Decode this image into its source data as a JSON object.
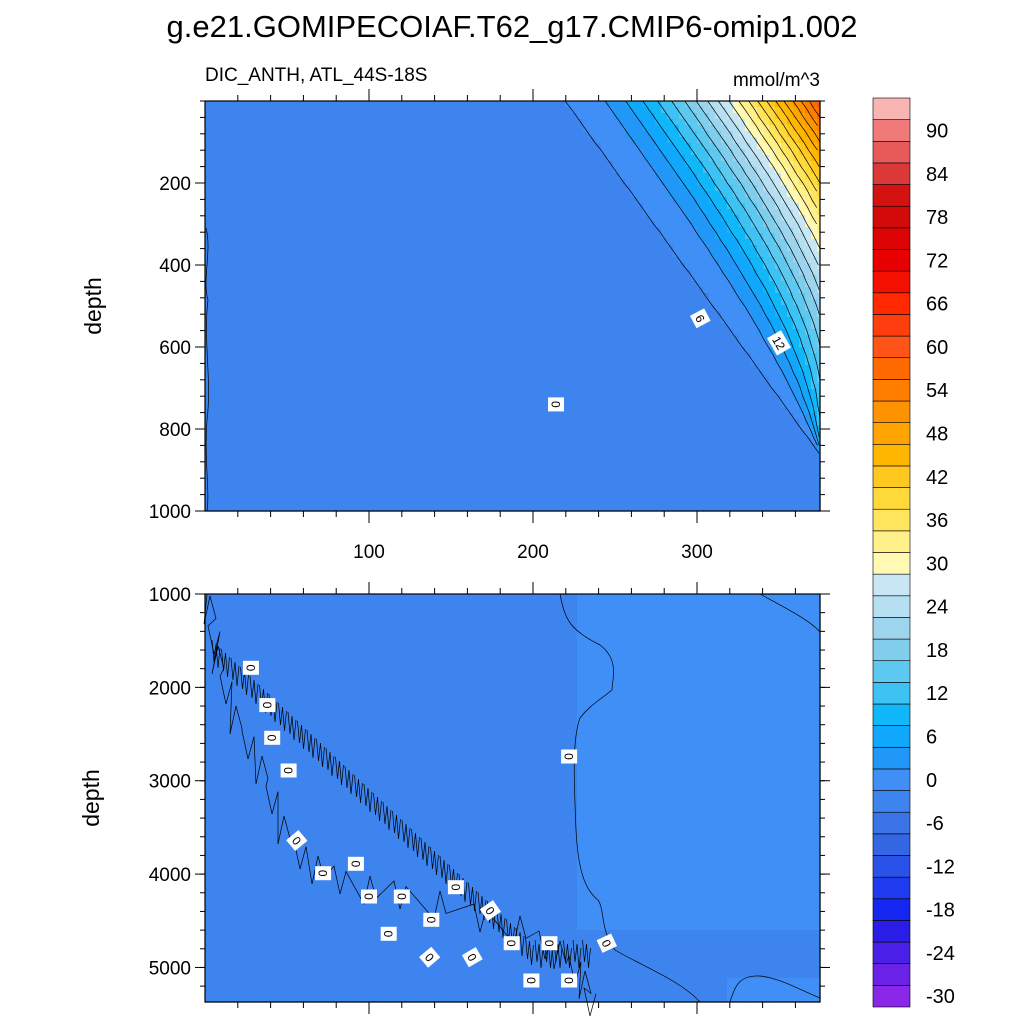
{
  "chart_data": {
    "type": "heatmap",
    "title": "g.e21.GOMIPECOIAF.T62_g17.CMIP6-omip1.002",
    "left_subtitle": "DIC_ANTH, ATL_44S-18S",
    "right_subtitle": "mmol/m^3",
    "colorbar": {
      "levels": [
        -30,
        -27,
        -24,
        -21,
        -18,
        -15,
        -12,
        -9,
        -6,
        -3,
        0,
        3,
        6,
        9,
        12,
        15,
        18,
        21,
        24,
        27,
        30,
        33,
        36,
        39,
        42,
        45,
        48,
        51,
        54,
        57,
        60,
        63,
        66,
        69,
        72,
        75,
        78,
        81,
        84,
        87,
        90,
        93
      ],
      "tick_labels": [
        "90",
        "84",
        "78",
        "72",
        "66",
        "60",
        "54",
        "48",
        "42",
        "36",
        "30",
        "24",
        "18",
        "12",
        "6",
        "0",
        "-6",
        "-12",
        "-18",
        "-24",
        "-30"
      ],
      "colors": [
        "#8b27e8",
        "#6a22e6",
        "#4a1fe8",
        "#2a1de6",
        "#1426f0",
        "#1e3bf0",
        "#2a52e8",
        "#3465e2",
        "#3b74e6",
        "#3d84ee",
        "#3f8ff6",
        "#2198f8",
        "#10a8fc",
        "#10b8fa",
        "#3ec2f4",
        "#5ec9f0",
        "#80cdec",
        "#9ed5ee",
        "#b6e0f2",
        "#c8e6f4",
        "#fff9b4",
        "#fff08a",
        "#ffe45e",
        "#ffd83a",
        "#ffc81e",
        "#ffb600",
        "#ffa400",
        "#ff9200",
        "#ff7e00",
        "#ff6a00",
        "#ff5418",
        "#ff3e10",
        "#ff2800",
        "#f41000",
        "#e80000",
        "#dc0404",
        "#d20a0a",
        "#d41212",
        "#dc3838",
        "#e85a5a",
        "#f07a7a",
        "#f9b4b4"
      ]
    },
    "panels": [
      {
        "name": "upper",
        "ylabel": "depth",
        "ylim": [
          1000,
          0
        ],
        "yticks": [
          200,
          400,
          600,
          800,
          1000
        ],
        "xlim": [
          0,
          375
        ],
        "xticks": [
          100,
          200,
          300
        ],
        "xtick_labels": [
          "100",
          "200",
          "300"
        ],
        "contour_labels": [
          {
            "text": "0",
            "x": 214,
            "depth": 740,
            "angle": 90
          },
          {
            "text": "6",
            "x": 302,
            "depth": 530,
            "angle": 62
          },
          {
            "text": "12",
            "x": 350,
            "depth": 590,
            "angle": 60
          }
        ]
      },
      {
        "name": "lower",
        "ylabel": "depth",
        "ylim": [
          5370,
          1000
        ],
        "yticks": [
          1000,
          2000,
          3000,
          4000,
          5000
        ],
        "xlim": [
          0,
          375
        ],
        "xticks": [
          100,
          200,
          300
        ],
        "contour_labels": [
          {
            "text": "0",
            "x": 28,
            "depth": 1790,
            "angle": 90
          },
          {
            "text": "0",
            "x": 38,
            "depth": 2190,
            "angle": 90
          },
          {
            "text": "0",
            "x": 41,
            "depth": 2540,
            "angle": 90
          },
          {
            "text": "0",
            "x": 51,
            "depth": 2890,
            "angle": 90
          },
          {
            "text": "0",
            "x": 56,
            "depth": 3640,
            "angle": 50
          },
          {
            "text": "0",
            "x": 72,
            "depth": 3990,
            "angle": 90
          },
          {
            "text": "0",
            "x": 92,
            "depth": 3890,
            "angle": 90
          },
          {
            "text": "0",
            "x": 100,
            "depth": 4240,
            "angle": 90
          },
          {
            "text": "0",
            "x": 120,
            "depth": 4240,
            "angle": 90
          },
          {
            "text": "0",
            "x": 112,
            "depth": 4640,
            "angle": 90
          },
          {
            "text": "0",
            "x": 138,
            "depth": 4490,
            "angle": 90
          },
          {
            "text": "0",
            "x": 137,
            "depth": 4890,
            "angle": 50
          },
          {
            "text": "0",
            "x": 153,
            "depth": 4140,
            "angle": 90
          },
          {
            "text": "0",
            "x": 163,
            "depth": 4890,
            "angle": 60
          },
          {
            "text": "0",
            "x": 174,
            "depth": 4390,
            "angle": 55
          },
          {
            "text": "0",
            "x": 187,
            "depth": 4740,
            "angle": 90
          },
          {
            "text": "0",
            "x": 199,
            "depth": 5140,
            "angle": 90
          },
          {
            "text": "0",
            "x": 210,
            "depth": 4740,
            "angle": 90
          },
          {
            "text": "0",
            "x": 222,
            "depth": 5140,
            "angle": 90
          },
          {
            "text": "0",
            "x": 222,
            "depth": 2740,
            "angle": 90
          },
          {
            "text": "0",
            "x": 245,
            "depth": 4740,
            "angle": 65
          }
        ]
      }
    ]
  }
}
